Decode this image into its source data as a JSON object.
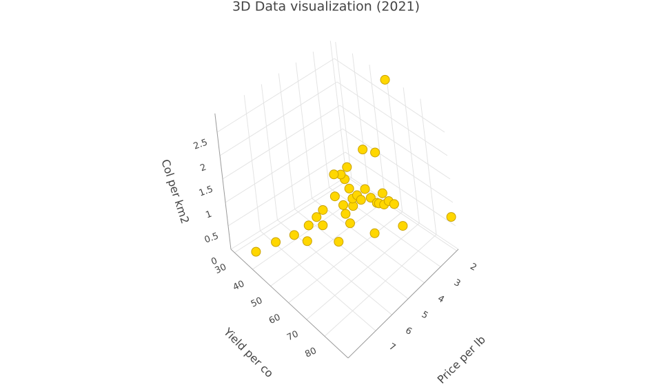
{
  "chart_data": {
    "type": "scatter3d",
    "title": "3D Data visualization (2021)",
    "xaxis_title": "Yield per co",
    "yaxis_title": "Price per lb",
    "zaxis_title": "Col per km2",
    "x": [
      60,
      92,
      40,
      45,
      49,
      51,
      58,
      71,
      79,
      53,
      55,
      54,
      55,
      62,
      61,
      59,
      59,
      64,
      63,
      65,
      66,
      70,
      70,
      69,
      71,
      73,
      74,
      67,
      72,
      64,
      63,
      62,
      60,
      63,
      65,
      68
    ],
    "y": [
      2.0,
      2.0,
      8.4,
      7.7,
      7.0,
      6.5,
      5.4,
      4.5,
      3.6,
      6.5,
      5.9,
      6.1,
      5.8,
      5.0,
      5.1,
      5.4,
      5.0,
      4.9,
      4.8,
      4.7,
      4.6,
      4.4,
      4.1,
      3.9,
      3.8,
      3.7,
      3.5,
      4.4,
      3.9,
      5.0,
      5.1,
      5.2,
      5.4,
      4.9,
      4.1,
      3.7
    ],
    "z": [
      2.85,
      0.7,
      0.3,
      0.5,
      0.6,
      0.4,
      0.3,
      0.6,
      0.7,
      0.8,
      0.7,
      0.9,
      1.0,
      0.7,
      0.9,
      1.3,
      1.0,
      1.1,
      1.2,
      1.3,
      1.2,
      1.3,
      1.1,
      1.0,
      1.0,
      1.1,
      1.0,
      1.4,
      1.3,
      1.5,
      1.7,
      1.8,
      1.8,
      1.9,
      2.1,
      2.0
    ],
    "color": "#FFD700",
    "xlim": [
      28,
      93
    ],
    "ylim": [
      1.9,
      8.7
    ],
    "zlim": [
      0,
      2.9
    ],
    "xticks": [
      30,
      40,
      50,
      60,
      70,
      80
    ],
    "yticks": [
      2,
      3,
      4,
      5,
      6,
      7
    ],
    "zticks": [
      0,
      0.5,
      1,
      1.5,
      2,
      2.5
    ],
    "grid": true
  }
}
